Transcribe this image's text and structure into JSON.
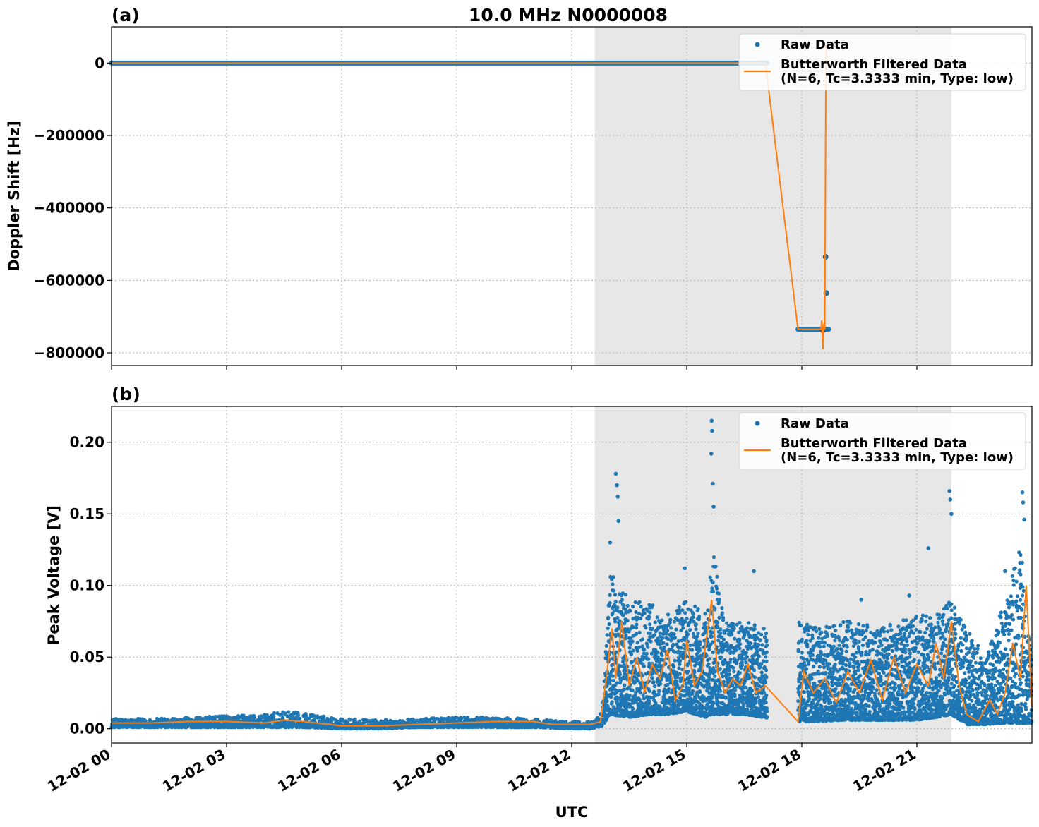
{
  "chart_data": {
    "type": "scatter",
    "title": "10.0 MHz N0000008",
    "xlabel": "UTC",
    "x_tick_labels": [
      "12-02 00",
      "12-02 03",
      "12-02 06",
      "12-02 09",
      "12-02 12",
      "12-02 15",
      "12-02 18",
      "12-02 21"
    ],
    "x_range_hours": [
      0,
      24
    ],
    "shaded_interval_hours": [
      12.6,
      21.9
    ],
    "colors": {
      "raw": "#1f77b4",
      "filtered": "#ff7f0e",
      "shade": "#e7e7e7"
    },
    "legend": {
      "placement": "top-right",
      "raw_label": "Raw Data",
      "filtered_label_line1": "Butterworth Filtered Data",
      "filtered_label_line2": "(N=6, Tc=3.3333 min, Type: low)"
    },
    "panels": [
      {
        "id": "a",
        "label": "(a)",
        "ylabel": "Doppler Shift [Hz]",
        "ylim": [
          -835000,
          100000
        ],
        "yticks": [
          0,
          -200000,
          -400000,
          -600000,
          -800000
        ],
        "ytick_labels": [
          "0",
          "−200000",
          "−400000",
          "−600000",
          "−800000"
        ],
        "raw_segments": [
          {
            "x": [
              0,
              17.1
            ],
            "y": 0
          },
          {
            "x": [
              17.9,
              18.7
            ],
            "y": -735000
          }
        ],
        "raw_points": [
          {
            "x": 18.62,
            "y": -535000
          },
          {
            "x": 18.64,
            "y": -635000
          },
          {
            "x": 18.55,
            "y": -738000
          },
          {
            "x": 18.6,
            "y": -735000
          }
        ],
        "filtered": {
          "x": [
            0,
            17.05,
            17.9,
            18.5,
            18.52,
            18.55,
            18.57,
            18.6,
            18.63,
            18.66
          ],
          "y": [
            0,
            0,
            -735000,
            -735000,
            -710000,
            -790000,
            -720000,
            -735000,
            50000,
            0
          ]
        }
      },
      {
        "id": "b",
        "label": "(b)",
        "ylabel": "Peak Voltage [V]",
        "ylim": [
          -0.01,
          0.225
        ],
        "yticks": [
          0.0,
          0.05,
          0.1,
          0.15,
          0.2
        ],
        "ytick_labels": [
          "0.00",
          "0.05",
          "0.10",
          "0.15",
          "0.20"
        ],
        "gap_hours": [
          17.1,
          17.9
        ],
        "envelope": {
          "x": [
            0,
            1,
            2,
            3,
            4,
            4.5,
            5,
            6,
            7,
            8,
            9,
            10,
            11,
            12,
            12.5,
            12.8,
            13,
            13.5,
            14,
            14.5,
            15,
            15.5,
            15.7,
            16,
            16.5,
            17,
            17.9,
            18.5,
            19,
            19.5,
            20,
            20.5,
            21,
            21.5,
            21.9,
            22.3,
            22.8,
            23.3,
            23.7,
            24
          ],
          "upper": [
            0.007,
            0.007,
            0.008,
            0.009,
            0.01,
            0.012,
            0.011,
            0.007,
            0.006,
            0.007,
            0.008,
            0.008,
            0.007,
            0.005,
            0.005,
            0.012,
            0.11,
            0.09,
            0.09,
            0.08,
            0.09,
            0.08,
            0.13,
            0.075,
            0.075,
            0.07,
            0.075,
            0.07,
            0.075,
            0.075,
            0.07,
            0.075,
            0.08,
            0.08,
            0.09,
            0.07,
            0.05,
            0.09,
            0.13,
            0.045
          ],
          "lower": [
            0.001,
            0.001,
            0.001,
            0.001,
            0.001,
            0.001,
            0.001,
            0.0,
            0.0,
            0.001,
            0.001,
            0.001,
            0.001,
            0.0,
            0.0,
            0.002,
            0.01,
            0.008,
            0.01,
            0.01,
            0.012,
            0.008,
            0.01,
            0.01,
            0.01,
            0.008,
            0.005,
            0.005,
            0.006,
            0.006,
            0.006,
            0.006,
            0.006,
            0.008,
            0.01,
            0.003,
            0.003,
            0.004,
            0.004,
            0.004
          ]
        },
        "outliers": [
          {
            "x": 13.15,
            "y": 0.178
          },
          {
            "x": 13.18,
            "y": 0.17
          },
          {
            "x": 13.2,
            "y": 0.162
          },
          {
            "x": 13.22,
            "y": 0.145
          },
          {
            "x": 13.0,
            "y": 0.13
          },
          {
            "x": 15.65,
            "y": 0.215
          },
          {
            "x": 15.66,
            "y": 0.208
          },
          {
            "x": 15.64,
            "y": 0.192
          },
          {
            "x": 15.68,
            "y": 0.171
          },
          {
            "x": 15.7,
            "y": 0.155
          },
          {
            "x": 14.95,
            "y": 0.112
          },
          {
            "x": 16.75,
            "y": 0.11
          },
          {
            "x": 19.55,
            "y": 0.09
          },
          {
            "x": 20.8,
            "y": 0.093
          },
          {
            "x": 21.3,
            "y": 0.126
          },
          {
            "x": 21.85,
            "y": 0.166
          },
          {
            "x": 21.87,
            "y": 0.16
          },
          {
            "x": 21.9,
            "y": 0.15
          },
          {
            "x": 23.75,
            "y": 0.165
          },
          {
            "x": 23.77,
            "y": 0.158
          },
          {
            "x": 23.8,
            "y": 0.146
          },
          {
            "x": 23.3,
            "y": 0.11
          }
        ],
        "filtered": {
          "x": [
            0,
            1,
            2,
            3,
            4,
            4.5,
            5,
            6,
            7,
            8,
            9,
            10,
            11,
            11.5,
            12,
            12.5,
            12.75,
            12.9,
            13.05,
            13.15,
            13.3,
            13.5,
            13.7,
            13.9,
            14.1,
            14.3,
            14.5,
            14.7,
            14.9,
            15.0,
            15.2,
            15.4,
            15.65,
            15.8,
            16.0,
            16.2,
            16.4,
            16.6,
            16.8,
            17.05,
            17.9,
            18.05,
            18.3,
            18.6,
            18.9,
            19.2,
            19.5,
            19.8,
            20.1,
            20.4,
            20.7,
            21.0,
            21.3,
            21.5,
            21.7,
            21.9,
            22.1,
            22.3,
            22.6,
            22.9,
            23.1,
            23.3,
            23.5,
            23.7,
            23.85,
            24
          ],
          "y": [
            0.004,
            0.004,
            0.005,
            0.005,
            0.004,
            0.006,
            0.005,
            0.002,
            0.002,
            0.003,
            0.004,
            0.005,
            0.005,
            0.003,
            0.003,
            0.003,
            0.005,
            0.035,
            0.07,
            0.035,
            0.075,
            0.03,
            0.05,
            0.025,
            0.045,
            0.035,
            0.055,
            0.02,
            0.03,
            0.062,
            0.03,
            0.04,
            0.09,
            0.04,
            0.025,
            0.035,
            0.03,
            0.045,
            0.025,
            0.03,
            0.005,
            0.04,
            0.025,
            0.035,
            0.018,
            0.04,
            0.025,
            0.048,
            0.02,
            0.05,
            0.025,
            0.045,
            0.03,
            0.06,
            0.035,
            0.075,
            0.03,
            0.01,
            0.005,
            0.02,
            0.01,
            0.025,
            0.06,
            0.035,
            0.1,
            0.015
          ]
        }
      }
    ]
  }
}
